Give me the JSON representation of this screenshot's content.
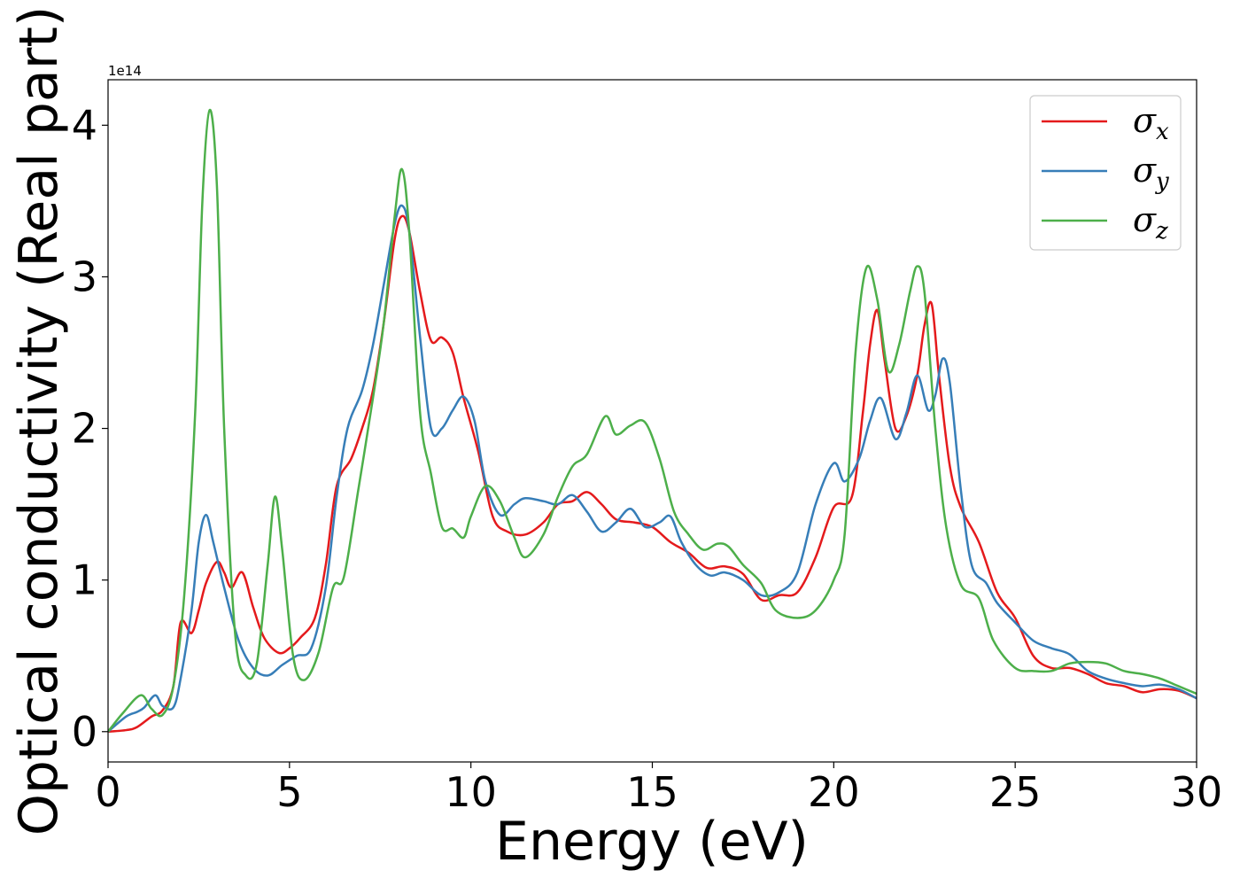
{
  "chart_data": {
    "type": "line",
    "xlabel": "Energy (eV)",
    "ylabel": "Optical conductivity (Real part)",
    "y_offset_text": "1e14",
    "xlim": [
      0,
      30
    ],
    "ylim": [
      -0.2,
      4.3
    ],
    "x_ticks": [
      0,
      5,
      10,
      15,
      20,
      25,
      30
    ],
    "x_tick_labels": [
      "0",
      "5",
      "10",
      "15",
      "20",
      "25",
      "30"
    ],
    "y_ticks": [
      0,
      1,
      2,
      3,
      4
    ],
    "y_tick_labels": [
      "0",
      "1",
      "2",
      "3",
      "4"
    ],
    "grid": false,
    "legend_position": "top-right",
    "series": [
      {
        "name": "σ_x",
        "symbol": "σ",
        "subscript": "x",
        "color": "#e41a1c",
        "points": [
          [
            0,
            0
          ],
          [
            0.5,
            0.01
          ],
          [
            0.8,
            0.03
          ],
          [
            1.2,
            0.1
          ],
          [
            1.5,
            0.14
          ],
          [
            1.8,
            0.3
          ],
          [
            2.0,
            0.72
          ],
          [
            2.3,
            0.65
          ],
          [
            2.5,
            0.8
          ],
          [
            2.7,
            0.98
          ],
          [
            3.0,
            1.12
          ],
          [
            3.2,
            1.05
          ],
          [
            3.4,
            0.95
          ],
          [
            3.7,
            1.05
          ],
          [
            4.0,
            0.82
          ],
          [
            4.3,
            0.62
          ],
          [
            4.7,
            0.52
          ],
          [
            5.0,
            0.55
          ],
          [
            5.3,
            0.62
          ],
          [
            5.7,
            0.75
          ],
          [
            6.0,
            1.1
          ],
          [
            6.3,
            1.62
          ],
          [
            6.7,
            1.8
          ],
          [
            7.0,
            2.0
          ],
          [
            7.3,
            2.25
          ],
          [
            7.6,
            2.7
          ],
          [
            7.9,
            3.25
          ],
          [
            8.1,
            3.4
          ],
          [
            8.3,
            3.3
          ],
          [
            8.6,
            2.9
          ],
          [
            8.9,
            2.58
          ],
          [
            9.2,
            2.6
          ],
          [
            9.5,
            2.5
          ],
          [
            9.8,
            2.2
          ],
          [
            10.2,
            1.85
          ],
          [
            10.6,
            1.42
          ],
          [
            11.0,
            1.32
          ],
          [
            11.5,
            1.3
          ],
          [
            12.0,
            1.38
          ],
          [
            12.4,
            1.5
          ],
          [
            12.8,
            1.52
          ],
          [
            13.2,
            1.58
          ],
          [
            13.6,
            1.5
          ],
          [
            14.0,
            1.4
          ],
          [
            14.5,
            1.38
          ],
          [
            15.0,
            1.35
          ],
          [
            15.5,
            1.25
          ],
          [
            16.0,
            1.18
          ],
          [
            16.5,
            1.08
          ],
          [
            17.0,
            1.09
          ],
          [
            17.5,
            1.04
          ],
          [
            18.0,
            0.87
          ],
          [
            18.5,
            0.9
          ],
          [
            19.0,
            0.92
          ],
          [
            19.5,
            1.15
          ],
          [
            20.0,
            1.48
          ],
          [
            20.5,
            1.55
          ],
          [
            20.8,
            2.1
          ],
          [
            21.0,
            2.55
          ],
          [
            21.2,
            2.78
          ],
          [
            21.4,
            2.45
          ],
          [
            21.7,
            2.0
          ],
          [
            22.0,
            2.08
          ],
          [
            22.3,
            2.35
          ],
          [
            22.5,
            2.68
          ],
          [
            22.7,
            2.82
          ],
          [
            22.9,
            2.35
          ],
          [
            23.2,
            1.75
          ],
          [
            23.5,
            1.48
          ],
          [
            24.0,
            1.25
          ],
          [
            24.5,
            0.92
          ],
          [
            25.0,
            0.75
          ],
          [
            25.5,
            0.5
          ],
          [
            26.0,
            0.42
          ],
          [
            26.5,
            0.42
          ],
          [
            27.0,
            0.38
          ],
          [
            27.5,
            0.32
          ],
          [
            28.0,
            0.3
          ],
          [
            28.5,
            0.26
          ],
          [
            29.0,
            0.28
          ],
          [
            29.5,
            0.27
          ],
          [
            30.0,
            0.22
          ]
        ]
      },
      {
        "name": "σ_y",
        "symbol": "σ",
        "subscript": "y",
        "color": "#377eb8",
        "points": [
          [
            0,
            0
          ],
          [
            0.5,
            0.1
          ],
          [
            0.8,
            0.13
          ],
          [
            1.0,
            0.16
          ],
          [
            1.3,
            0.24
          ],
          [
            1.5,
            0.17
          ],
          [
            1.8,
            0.16
          ],
          [
            2.0,
            0.35
          ],
          [
            2.3,
            0.8
          ],
          [
            2.5,
            1.25
          ],
          [
            2.7,
            1.43
          ],
          [
            2.9,
            1.25
          ],
          [
            3.2,
            0.95
          ],
          [
            3.6,
            0.6
          ],
          [
            4.0,
            0.42
          ],
          [
            4.4,
            0.37
          ],
          [
            4.8,
            0.44
          ],
          [
            5.2,
            0.5
          ],
          [
            5.6,
            0.55
          ],
          [
            6.0,
            0.95
          ],
          [
            6.3,
            1.55
          ],
          [
            6.6,
            2.0
          ],
          [
            7.0,
            2.25
          ],
          [
            7.3,
            2.55
          ],
          [
            7.6,
            2.95
          ],
          [
            7.9,
            3.35
          ],
          [
            8.1,
            3.47
          ],
          [
            8.3,
            3.3
          ],
          [
            8.6,
            2.6
          ],
          [
            8.9,
            2.0
          ],
          [
            9.2,
            2.0
          ],
          [
            9.5,
            2.12
          ],
          [
            9.8,
            2.21
          ],
          [
            10.1,
            2.05
          ],
          [
            10.4,
            1.65
          ],
          [
            10.8,
            1.43
          ],
          [
            11.2,
            1.5
          ],
          [
            11.5,
            1.54
          ],
          [
            12.0,
            1.52
          ],
          [
            12.4,
            1.5
          ],
          [
            12.8,
            1.56
          ],
          [
            13.2,
            1.45
          ],
          [
            13.6,
            1.32
          ],
          [
            14.0,
            1.38
          ],
          [
            14.4,
            1.47
          ],
          [
            14.8,
            1.35
          ],
          [
            15.2,
            1.38
          ],
          [
            15.5,
            1.42
          ],
          [
            15.8,
            1.25
          ],
          [
            16.2,
            1.1
          ],
          [
            16.6,
            1.03
          ],
          [
            17.0,
            1.05
          ],
          [
            17.5,
            1.0
          ],
          [
            18.0,
            0.9
          ],
          [
            18.5,
            0.92
          ],
          [
            19.0,
            1.05
          ],
          [
            19.5,
            1.5
          ],
          [
            20.0,
            1.77
          ],
          [
            20.3,
            1.65
          ],
          [
            20.7,
            1.8
          ],
          [
            21.0,
            2.05
          ],
          [
            21.3,
            2.2
          ],
          [
            21.7,
            1.93
          ],
          [
            22.0,
            2.1
          ],
          [
            22.3,
            2.35
          ],
          [
            22.6,
            2.12
          ],
          [
            22.8,
            2.22
          ],
          [
            23.0,
            2.46
          ],
          [
            23.2,
            2.3
          ],
          [
            23.5,
            1.6
          ],
          [
            23.8,
            1.1
          ],
          [
            24.2,
            0.98
          ],
          [
            24.5,
            0.85
          ],
          [
            25.0,
            0.72
          ],
          [
            25.5,
            0.6
          ],
          [
            26.0,
            0.55
          ],
          [
            26.5,
            0.51
          ],
          [
            27.0,
            0.4
          ],
          [
            27.5,
            0.35
          ],
          [
            28.0,
            0.32
          ],
          [
            28.5,
            0.3
          ],
          [
            29.0,
            0.31
          ],
          [
            29.5,
            0.28
          ],
          [
            30.0,
            0.22
          ]
        ]
      },
      {
        "name": "σ_z",
        "symbol": "σ",
        "subscript": "z",
        "color": "#4daf4a",
        "points": [
          [
            0,
            0
          ],
          [
            0.4,
            0.12
          ],
          [
            0.9,
            0.24
          ],
          [
            1.2,
            0.15
          ],
          [
            1.5,
            0.11
          ],
          [
            1.8,
            0.3
          ],
          [
            2.1,
            0.9
          ],
          [
            2.4,
            2.1
          ],
          [
            2.6,
            3.5
          ],
          [
            2.8,
            4.1
          ],
          [
            3.0,
            3.6
          ],
          [
            3.2,
            2.0
          ],
          [
            3.5,
            0.65
          ],
          [
            3.8,
            0.37
          ],
          [
            4.1,
            0.45
          ],
          [
            4.4,
            1.1
          ],
          [
            4.6,
            1.55
          ],
          [
            4.8,
            1.2
          ],
          [
            5.1,
            0.5
          ],
          [
            5.4,
            0.34
          ],
          [
            5.8,
            0.52
          ],
          [
            6.2,
            0.95
          ],
          [
            6.5,
            1.02
          ],
          [
            6.9,
            1.6
          ],
          [
            7.3,
            2.2
          ],
          [
            7.6,
            2.7
          ],
          [
            7.9,
            3.4
          ],
          [
            8.1,
            3.71
          ],
          [
            8.3,
            3.3
          ],
          [
            8.6,
            2.1
          ],
          [
            8.9,
            1.7
          ],
          [
            9.2,
            1.35
          ],
          [
            9.5,
            1.34
          ],
          [
            9.8,
            1.28
          ],
          [
            10.0,
            1.42
          ],
          [
            10.4,
            1.62
          ],
          [
            10.8,
            1.52
          ],
          [
            11.2,
            1.28
          ],
          [
            11.5,
            1.15
          ],
          [
            12.0,
            1.3
          ],
          [
            12.4,
            1.55
          ],
          [
            12.8,
            1.75
          ],
          [
            13.2,
            1.83
          ],
          [
            13.7,
            2.08
          ],
          [
            14.0,
            1.96
          ],
          [
            14.4,
            2.02
          ],
          [
            14.8,
            2.04
          ],
          [
            15.2,
            1.8
          ],
          [
            15.6,
            1.45
          ],
          [
            16.0,
            1.3
          ],
          [
            16.4,
            1.2
          ],
          [
            16.8,
            1.24
          ],
          [
            17.1,
            1.22
          ],
          [
            17.5,
            1.1
          ],
          [
            18.0,
            0.98
          ],
          [
            18.4,
            0.8
          ],
          [
            19.0,
            0.75
          ],
          [
            19.5,
            0.8
          ],
          [
            20.0,
            1.0
          ],
          [
            20.3,
            1.3
          ],
          [
            20.6,
            2.5
          ],
          [
            20.9,
            3.06
          ],
          [
            21.2,
            2.85
          ],
          [
            21.5,
            2.38
          ],
          [
            21.8,
            2.55
          ],
          [
            22.1,
            2.9
          ],
          [
            22.3,
            3.07
          ],
          [
            22.5,
            2.9
          ],
          [
            22.8,
            2.0
          ],
          [
            23.1,
            1.35
          ],
          [
            23.5,
            0.97
          ],
          [
            24.0,
            0.88
          ],
          [
            24.4,
            0.6
          ],
          [
            25.0,
            0.42
          ],
          [
            25.5,
            0.4
          ],
          [
            26.0,
            0.4
          ],
          [
            26.5,
            0.45
          ],
          [
            27.0,
            0.46
          ],
          [
            27.5,
            0.45
          ],
          [
            28.0,
            0.4
          ],
          [
            28.5,
            0.38
          ],
          [
            29.0,
            0.35
          ],
          [
            29.5,
            0.3
          ],
          [
            30.0,
            0.25
          ]
        ]
      }
    ]
  }
}
